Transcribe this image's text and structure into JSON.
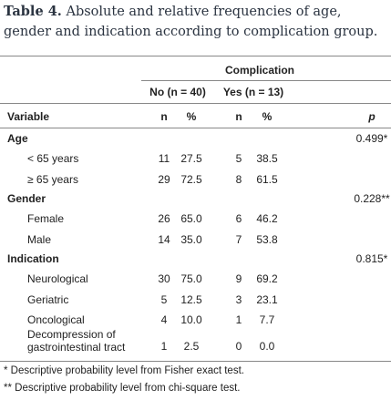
{
  "caption": {
    "label": "Table 4.",
    "text": "Absolute and relative frequencies of age, gender and indication according to complication group."
  },
  "table": {
    "group_header": "Complication",
    "subgroups": [
      "No (n = 40)",
      "Yes (n = 13)"
    ],
    "columns": [
      "Variable",
      "n",
      "%",
      "n",
      "%",
      "p"
    ],
    "sections": [
      {
        "name": "Age",
        "p": "0.499*",
        "rows": [
          [
            "< 65 years",
            "11",
            "27.5",
            "5",
            "38.5"
          ],
          [
            "≥ 65 years",
            "29",
            "72.5",
            "8",
            "61.5"
          ]
        ]
      },
      {
        "name": "Gender",
        "p": "0.228**",
        "rows": [
          [
            "Female",
            "26",
            "65.0",
            "6",
            "46.2"
          ],
          [
            "Male",
            "14",
            "35.0",
            "7",
            "53.8"
          ]
        ]
      },
      {
        "name": "Indication",
        "p": "0.815*",
        "rows": [
          [
            "Neurological",
            "30",
            "75.0",
            "9",
            "69.2"
          ],
          [
            "Geriatric",
            "5",
            "12.5",
            "3",
            "23.1"
          ],
          [
            "Oncological",
            "4",
            "10.0",
            "1",
            "7.7"
          ],
          [
            "Decompression of gastrointestinal tract",
            "1",
            "2.5",
            "0",
            "0.0"
          ]
        ]
      }
    ]
  },
  "footnotes": [
    "* Descriptive probability level from Fisher exact test.",
    "** Descriptive probability level from chi-square test."
  ]
}
